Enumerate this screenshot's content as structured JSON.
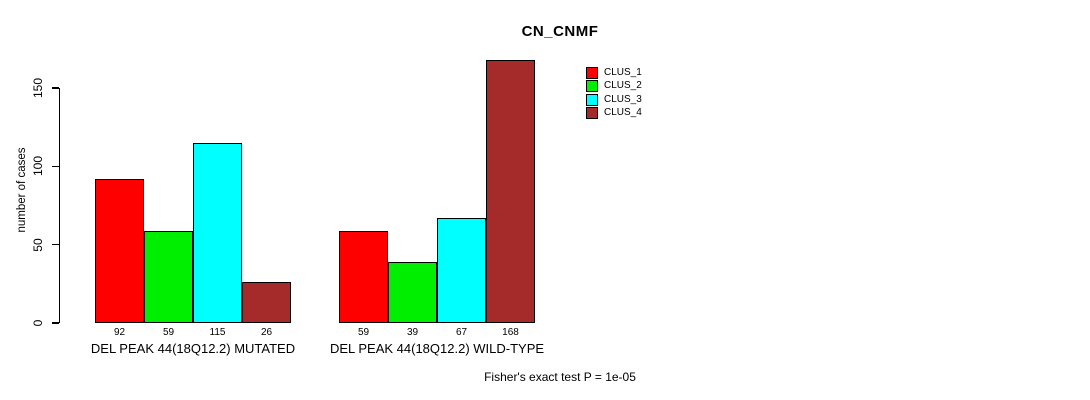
{
  "chart_data": {
    "type": "bar",
    "title": "CN_CNMF",
    "ylabel": "number of cases",
    "xlabel": "",
    "yticks": [
      0,
      50,
      100,
      150
    ],
    "ylim": [
      0,
      168
    ],
    "grid": false,
    "legend_position": "top-right",
    "series": [
      {
        "name": "CLUS_1",
        "color": "#ff0000"
      },
      {
        "name": "CLUS_2",
        "color": "#00ee00"
      },
      {
        "name": "CLUS_3",
        "color": "#00ffff"
      },
      {
        "name": "CLUS_4",
        "color": "#a52a2a"
      }
    ],
    "groups": [
      {
        "label": "DEL PEAK 44(18Q12.2) MUTATED",
        "values": [
          92,
          59,
          115,
          26
        ]
      },
      {
        "label": "DEL PEAK 44(18Q12.2) WILD-TYPE",
        "values": [
          59,
          39,
          67,
          168
        ]
      }
    ],
    "footnote": "Fisher's exact test P = 1e-05"
  }
}
